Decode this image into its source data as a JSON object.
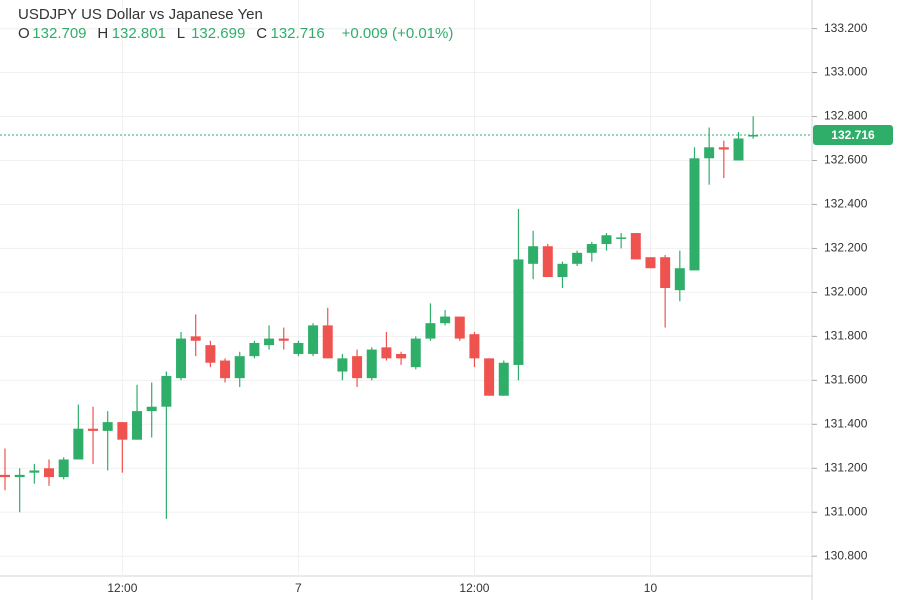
{
  "chart_data": {
    "type": "candlestick",
    "title": "USDJPY US Dollar vs Japanese Yen",
    "ohlc_letters": [
      "O",
      "H",
      "L",
      "C"
    ],
    "change_label": "+0.009 (+0.01%)",
    "up_color": "#2fae6a",
    "down_color": "#ef5350",
    "categories": [
      null,
      null,
      null,
      null,
      null,
      null,
      null,
      null,
      "12:00",
      null,
      null,
      null,
      null,
      null,
      null,
      null,
      null,
      null,
      null,
      null,
      "7",
      null,
      null,
      null,
      null,
      null,
      null,
      null,
      null,
      null,
      null,
      null,
      "12:00",
      null,
      null,
      null,
      null,
      null,
      null,
      null,
      null,
      null,
      null,
      null,
      "10",
      null,
      null,
      null,
      null,
      null,
      null,
      null
    ],
    "open": [
      131.17,
      131.16,
      131.18,
      131.2,
      131.16,
      131.24,
      131.38,
      131.37,
      131.41,
      131.33,
      131.46,
      131.48,
      131.61,
      131.8,
      131.76,
      131.69,
      131.61,
      131.71,
      131.76,
      131.79,
      131.72,
      131.72,
      131.85,
      131.64,
      131.71,
      131.61,
      131.75,
      131.72,
      131.66,
      131.79,
      131.86,
      131.89,
      131.81,
      131.7,
      131.53,
      131.67,
      132.13,
      132.21,
      132.07,
      132.13,
      132.18,
      132.22,
      132.25,
      132.27,
      132.16,
      132.16,
      132.01,
      132.1,
      132.61,
      132.66,
      132.6,
      132.709
    ],
    "high": [
      131.29,
      131.2,
      131.22,
      131.24,
      131.25,
      131.49,
      131.48,
      131.46,
      131.41,
      131.58,
      131.59,
      131.64,
      131.82,
      131.9,
      131.78,
      131.7,
      131.73,
      131.78,
      131.85,
      131.84,
      131.78,
      131.86,
      131.93,
      131.72,
      131.74,
      131.75,
      131.82,
      131.73,
      131.8,
      131.95,
      131.92,
      131.89,
      131.82,
      131.7,
      131.69,
      132.38,
      132.28,
      132.22,
      132.14,
      132.19,
      132.23,
      132.27,
      132.27,
      132.27,
      132.16,
      132.17,
      132.19,
      132.66,
      132.75,
      132.69,
      132.73,
      132.801
    ],
    "low": [
      131.1,
      131.0,
      131.13,
      131.12,
      131.15,
      131.24,
      131.22,
      131.19,
      131.18,
      131.33,
      131.34,
      130.97,
      131.6,
      131.71,
      131.66,
      131.59,
      131.57,
      131.7,
      131.74,
      131.74,
      131.71,
      131.71,
      131.7,
      131.6,
      131.57,
      131.6,
      131.69,
      131.67,
      131.65,
      131.78,
      131.85,
      131.78,
      131.66,
      131.53,
      131.53,
      131.6,
      132.06,
      132.07,
      132.02,
      132.12,
      132.14,
      132.19,
      132.2,
      132.15,
      132.11,
      131.84,
      131.96,
      132.1,
      132.49,
      132.52,
      132.6,
      132.699
    ],
    "close": [
      131.16,
      131.17,
      131.19,
      131.16,
      131.24,
      131.38,
      131.37,
      131.41,
      131.33,
      131.46,
      131.48,
      131.62,
      131.79,
      131.78,
      131.68,
      131.61,
      131.71,
      131.77,
      131.79,
      131.78,
      131.77,
      131.85,
      131.7,
      131.7,
      131.61,
      131.74,
      131.7,
      131.7,
      131.79,
      131.86,
      131.89,
      131.79,
      131.7,
      131.53,
      131.68,
      132.15,
      132.21,
      132.07,
      132.13,
      132.18,
      132.22,
      132.26,
      132.25,
      132.15,
      132.11,
      132.02,
      132.11,
      132.61,
      132.66,
      132.65,
      132.7,
      132.716
    ],
    "ylim": [
      130.71,
      133.33
    ],
    "yticks": [
      {
        "value": 130.8,
        "label": "130.800"
      },
      {
        "value": 131.0,
        "label": "131.000"
      },
      {
        "value": 131.2,
        "label": "131.200"
      },
      {
        "value": 131.4,
        "label": "131.400"
      },
      {
        "value": 131.6,
        "label": "131.600"
      },
      {
        "value": 131.8,
        "label": "131.800"
      },
      {
        "value": 132.0,
        "label": "132.000"
      },
      {
        "value": 132.2,
        "label": "132.200"
      },
      {
        "value": 132.4,
        "label": "132.400"
      },
      {
        "value": 132.6,
        "label": "132.600"
      },
      {
        "value": 132.8,
        "label": "132.800"
      },
      {
        "value": 133.0,
        "label": "133.000"
      },
      {
        "value": 133.2,
        "label": "133.200"
      }
    ],
    "grid": true
  }
}
